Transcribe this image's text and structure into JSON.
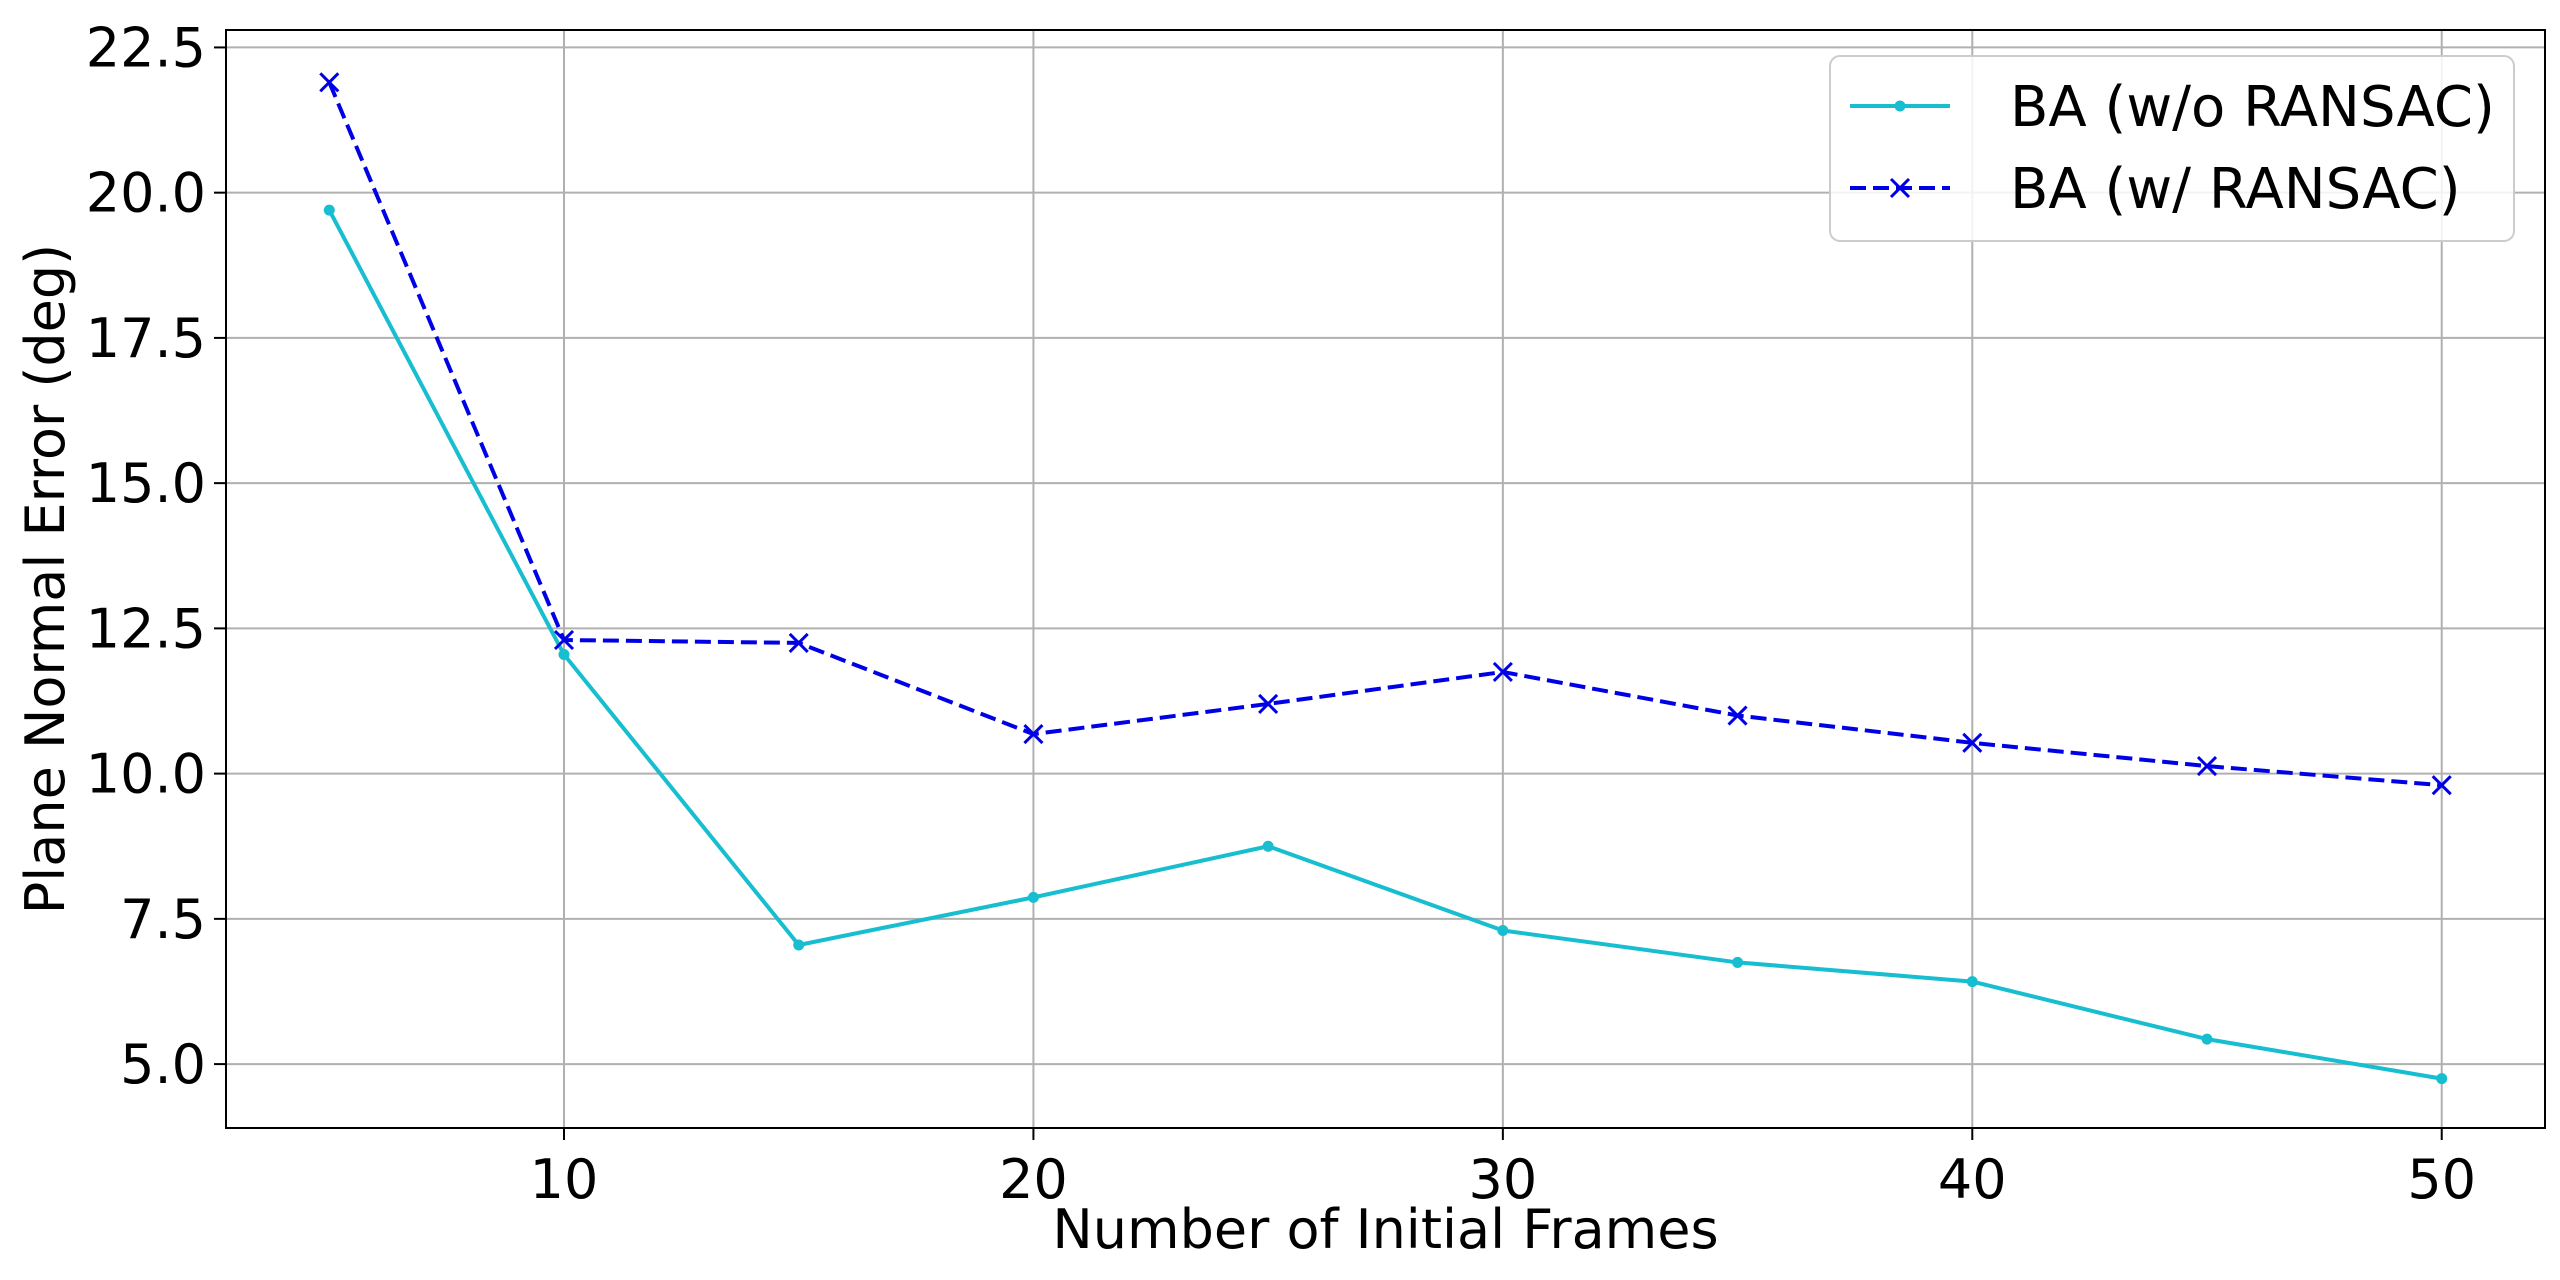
{
  "chart_data": {
    "type": "line",
    "xlabel": "Number of Initial Frames",
    "ylabel": "Plane Normal Error (deg)",
    "xlim": [
      2.8,
      52.2
    ],
    "ylim": [
      3.9,
      22.8
    ],
    "xticks": [
      10,
      20,
      30,
      40,
      50
    ],
    "xtick_labels": [
      "10",
      "20",
      "30",
      "40",
      "50"
    ],
    "yticks": [
      5.0,
      7.5,
      10.0,
      12.5,
      15.0,
      17.5,
      20.0,
      22.5
    ],
    "ytick_labels": [
      "5.0",
      "7.5",
      "10.0",
      "12.5",
      "15.0",
      "17.5",
      "20.0",
      "22.5"
    ],
    "grid": true,
    "legend_position": "top-right",
    "x": [
      5,
      10,
      15,
      20,
      25,
      30,
      35,
      40,
      45,
      50
    ],
    "series": [
      {
        "name": "BA (w/o RANSAC)",
        "values": [
          19.7,
          12.05,
          7.05,
          7.87,
          8.75,
          7.3,
          6.75,
          6.42,
          5.43,
          4.75
        ],
        "color": "#17becf",
        "line_style": "solid",
        "marker": "dot"
      },
      {
        "name": "BA (w/ RANSAC)",
        "values": [
          21.9,
          12.3,
          12.25,
          10.68,
          11.2,
          11.75,
          11.0,
          10.53,
          10.13,
          9.8
        ],
        "color": "#0000e6",
        "line_style": "dashed",
        "marker": "x"
      }
    ]
  }
}
